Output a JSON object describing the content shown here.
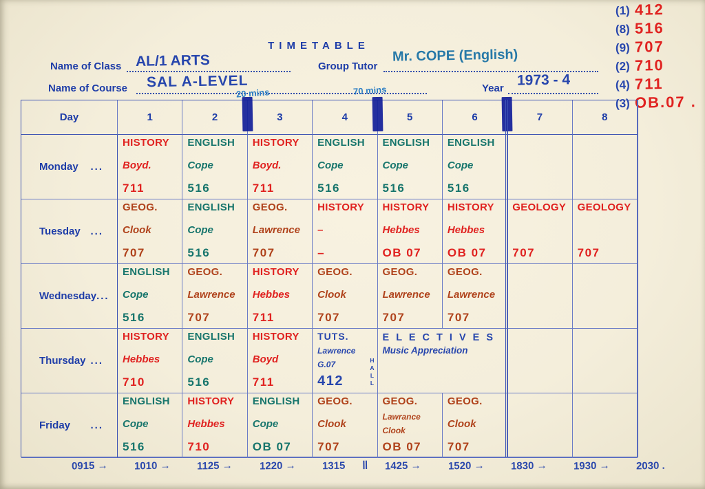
{
  "document": {
    "title": "TIMETABLE"
  },
  "colors": {
    "printed_blue": "#1e3da8",
    "handwriting_blue": "#2746ad",
    "handwriting_red": "#e02220",
    "handwriting_brick_red": "#b0431c",
    "handwriting_teal": "#17756c",
    "tape_mark_blue": "#13209a",
    "paper": "#f4eedb"
  },
  "header": {
    "class_label": "Name of Class",
    "class_value": "AL/1 ARTS",
    "tutor_label": "Group Tutor",
    "tutor_value": "Mr. COPE (English)",
    "course_label": "Name of Course",
    "course_value": "SAL A-LEVEL",
    "year_label": "Year",
    "year_value": "1973 - 4",
    "note_short_periods": "20 mins",
    "note_long_periods": "70 mins"
  },
  "room_key": {
    "entries": [
      {
        "num": "(1)",
        "room": "412"
      },
      {
        "num": "(8)",
        "room": "516"
      },
      {
        "num": "(9)",
        "room": "707"
      },
      {
        "num": "(2)",
        "room": "710"
      },
      {
        "num": "(4)",
        "room": "711"
      },
      {
        "num": "(3)",
        "room": "OB.07 ."
      }
    ]
  },
  "timetable": {
    "day_header": "Day",
    "periods": [
      "1",
      "2",
      "3",
      "4",
      "5",
      "6",
      "7",
      "8"
    ],
    "dots": "...",
    "rows": [
      {
        "day": "Monday",
        "cells": [
          {
            "lines": [
              "HISTORY",
              "Boyd.",
              "711"
            ],
            "ink": "red"
          },
          {
            "lines": [
              "ENGLISH",
              "Cope",
              "516"
            ],
            "ink": "teal"
          },
          {
            "lines": [
              "HISTORY",
              "Boyd.",
              "711"
            ],
            "ink": "red"
          },
          {
            "lines": [
              "ENGLISH",
              "Cope",
              "516"
            ],
            "ink": "teal"
          },
          {
            "lines": [
              "ENGLISH",
              "Cope",
              "516"
            ],
            "ink": "teal"
          },
          {
            "lines": [
              "ENGLISH",
              "Cope",
              "516"
            ],
            "ink": "teal"
          },
          {
            "lines": []
          },
          {
            "lines": []
          }
        ]
      },
      {
        "day": "Tuesday",
        "cells": [
          {
            "lines": [
              "GEOG.",
              "Clook",
              "707"
            ],
            "ink": "brick"
          },
          {
            "lines": [
              "ENGLISH",
              "Cope",
              "516"
            ],
            "ink": "teal"
          },
          {
            "lines": [
              "GEOG.",
              "Lawrence",
              "707"
            ],
            "ink": "brick"
          },
          {
            "lines": [
              "HISTORY",
              "–",
              "–"
            ],
            "ink": "red"
          },
          {
            "lines": [
              "HISTORY",
              "Hebbes",
              "OB 07"
            ],
            "ink": "red"
          },
          {
            "lines": [
              "HISTORY",
              "Hebbes",
              "OB 07"
            ],
            "ink": "red"
          },
          {
            "lines": [
              "GEOLOGY",
              "",
              "707"
            ],
            "ink": "red"
          },
          {
            "lines": [
              "GEOLOGY",
              "",
              "707"
            ],
            "ink": "red"
          }
        ]
      },
      {
        "day": "Wednesday",
        "cells": [
          {
            "lines": [
              "ENGLISH",
              "Cope",
              "516"
            ],
            "ink": "teal"
          },
          {
            "lines": [
              "GEOG.",
              "Lawrence",
              "707"
            ],
            "ink": "brick"
          },
          {
            "lines": [
              "HISTORY",
              "Hebbes",
              "711"
            ],
            "ink": "red"
          },
          {
            "lines": [
              "GEOG.",
              "Clook",
              "707"
            ],
            "ink": "brick"
          },
          {
            "lines": [
              "GEOG.",
              "Lawrence",
              "707"
            ],
            "ink": "brick"
          },
          {
            "lines": [
              "GEOG.",
              "Lawrence",
              "707"
            ],
            "ink": "brick"
          },
          {
            "lines": []
          },
          {
            "lines": []
          }
        ]
      },
      {
        "day": "Thursday",
        "cells": [
          {
            "lines": [
              "HISTORY",
              "Hebbes",
              "710"
            ],
            "ink": "red"
          },
          {
            "lines": [
              "ENGLISH",
              "Cope",
              "516"
            ],
            "ink": "teal"
          },
          {
            "lines": [
              "HISTORY",
              "Boyd",
              "711"
            ],
            "ink": "red"
          },
          {
            "lines": [
              "TUTS.",
              "Lawrence",
              "G.07",
              "412"
            ],
            "ink": "blue",
            "variant": "tuts",
            "side_note": "HALL"
          },
          {
            "lines": [
              "E L E C T I V E S",
              "Music Appreciation"
            ],
            "ink": "blue",
            "variant": "electives",
            "span": 2
          },
          {
            "lines": []
          },
          {
            "lines": []
          }
        ]
      },
      {
        "day": "Friday",
        "cells": [
          {
            "lines": [
              "ENGLISH",
              "Cope",
              "516"
            ],
            "ink": "teal"
          },
          {
            "lines": [
              "HISTORY",
              "Hebbes",
              "710"
            ],
            "ink": "red"
          },
          {
            "lines": [
              "ENGLISH",
              "Cope",
              "OB 07"
            ],
            "ink": "teal"
          },
          {
            "lines": [
              "GEOG.",
              "Clook",
              "707"
            ],
            "ink": "brick"
          },
          {
            "lines": [
              "GEOG.",
              "Lawrance",
              "Clook",
              "OB 07"
            ],
            "ink": "brick"
          },
          {
            "lines": [
              "GEOG.",
              "Clook",
              "707"
            ],
            "ink": "brick"
          },
          {
            "lines": []
          },
          {
            "lines": []
          }
        ]
      }
    ]
  },
  "times": {
    "arrow": "→",
    "segments": [
      {
        "t": "0915",
        "arrow": true
      },
      {
        "t": "1010",
        "arrow": true
      },
      {
        "t": "1125",
        "arrow": true
      },
      {
        "t": "1220",
        "arrow": true
      },
      {
        "t": "1315",
        "arrow": false
      },
      {
        "t": "‖",
        "arrow": false,
        "sep": true
      },
      {
        "t": "1425",
        "arrow": true
      },
      {
        "t": "1520",
        "arrow": true
      },
      {
        "t": "1830",
        "arrow": true
      },
      {
        "t": "1930",
        "arrow": true
      },
      {
        "t": "2030 .",
        "arrow": false
      }
    ]
  }
}
